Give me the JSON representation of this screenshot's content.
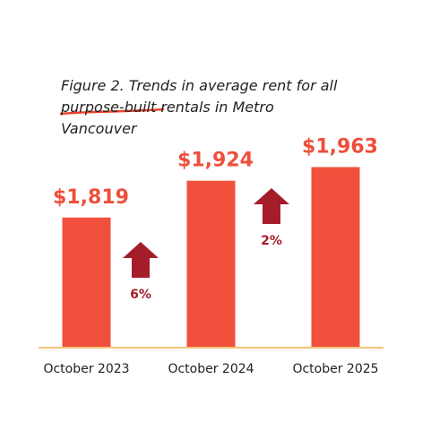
{
  "chart_data": {
    "type": "bar",
    "title": "Figure 2. Trends in average rent for all purpose-built rentals in Metro Vancouver",
    "categories": [
      "October 2023",
      "October 2024",
      "October 2025"
    ],
    "values": [
      1819,
      1924,
      1963
    ],
    "value_labels": [
      "$1,819",
      "$1,924",
      "$1,963"
    ],
    "color": "#f0503c",
    "ylim": [
      1450,
      2000
    ],
    "changes": {
      "values": [
        6,
        2
      ],
      "value_labels": [
        "6%",
        "2%"
      ],
      "color": "#a51d2b"
    }
  }
}
